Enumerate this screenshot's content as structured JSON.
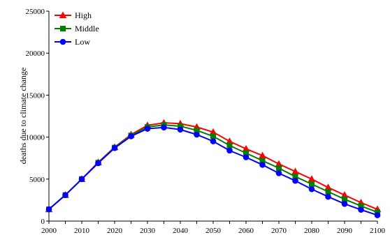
{
  "chart_data": {
    "type": "line",
    "title": "",
    "xlabel": "",
    "ylabel": "deaths due to climate change",
    "xlim": [
      2000,
      2100
    ],
    "ylim": [
      0,
      25000
    ],
    "x_ticks": [
      "2000",
      "2010",
      "2020",
      "2030",
      "2040",
      "2050",
      "2060",
      "2070",
      "2080",
      "2090",
      "2100"
    ],
    "y_ticks": [
      "0",
      "5000",
      "10000",
      "15000",
      "20000",
      "25000"
    ],
    "legend_position": "top-left",
    "grid": false,
    "x": [
      2000,
      2005,
      2010,
      2015,
      2020,
      2025,
      2030,
      2035,
      2040,
      2045,
      2050,
      2055,
      2060,
      2065,
      2070,
      2075,
      2080,
      2085,
      2090,
      2095,
      2100
    ],
    "series": [
      {
        "name": "High",
        "color": "#ff0000",
        "marker": "triangle",
        "values": [
          1400,
          3100,
          5000,
          7000,
          8800,
          10300,
          11400,
          11700,
          11600,
          11200,
          10600,
          9500,
          8600,
          7800,
          6800,
          5900,
          5000,
          4000,
          3100,
          2200,
          1400
        ]
      },
      {
        "name": "Middle",
        "color": "#008000",
        "marker": "square",
        "values": [
          1400,
          3100,
          5000,
          6950,
          8750,
          10200,
          11200,
          11450,
          11300,
          10800,
          10100,
          9000,
          8100,
          7200,
          6300,
          5300,
          4400,
          3500,
          2600,
          1800,
          1050
        ]
      },
      {
        "name": "Low",
        "color": "#0000ff",
        "marker": "circle",
        "values": [
          1400,
          3100,
          5000,
          6900,
          8700,
          10100,
          11000,
          11150,
          10900,
          10300,
          9500,
          8400,
          7600,
          6700,
          5700,
          4800,
          3800,
          2900,
          2050,
          1350,
          700
        ]
      }
    ]
  }
}
